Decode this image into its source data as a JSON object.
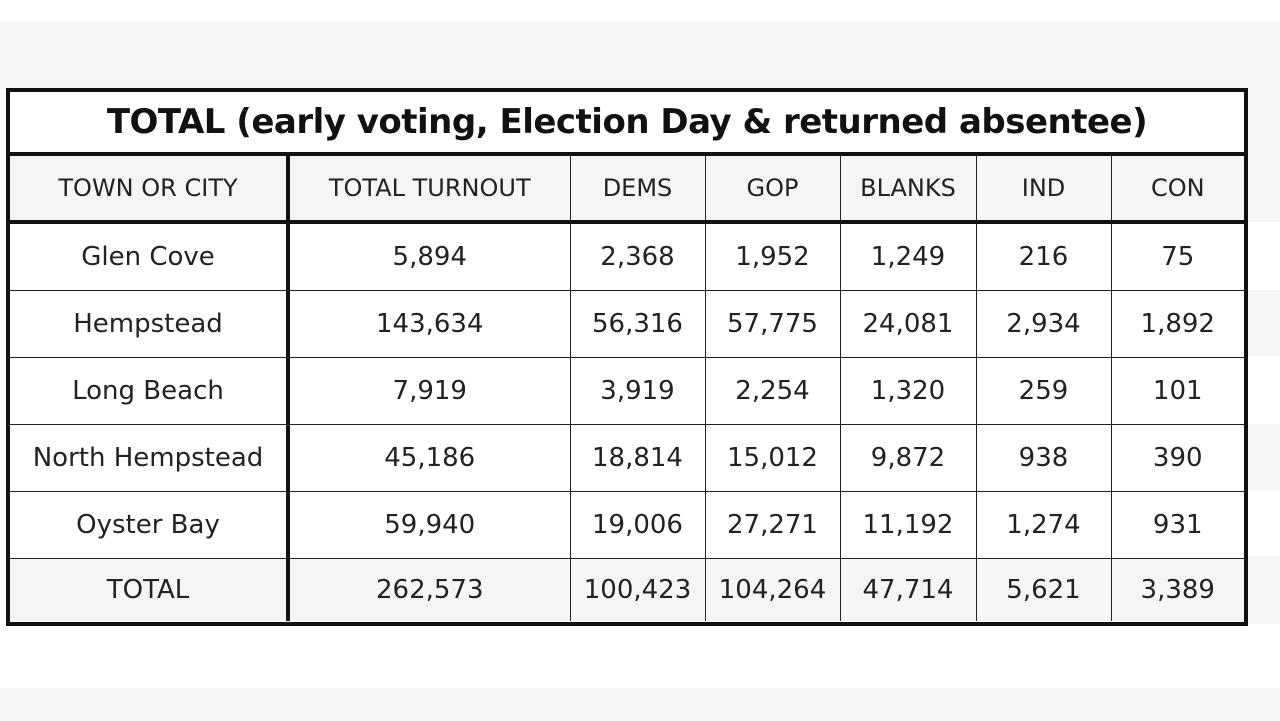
{
  "title": "TOTAL (early voting, Election Day & returned absentee)",
  "columns": [
    "TOWN OR CITY",
    "TOTAL TURNOUT",
    "DEMS",
    "GOP",
    "BLANKS",
    "IND",
    "CON"
  ],
  "rows": [
    [
      "Glen Cove",
      "5,894",
      "2,368",
      "1,952",
      "1,249",
      "216",
      "75"
    ],
    [
      "Hempstead",
      "143,634",
      "56,316",
      "57,775",
      "24,081",
      "2,934",
      "1,892"
    ],
    [
      "Long Beach",
      "7,919",
      "3,919",
      "2,254",
      "1,320",
      "259",
      "101"
    ],
    [
      "North Hempstead",
      "45,186",
      "18,814",
      "15,012",
      "9,872",
      "938",
      "390"
    ],
    [
      "Oyster Bay",
      "59,940",
      "19,006",
      "27,271",
      "11,192",
      "1,274",
      "931"
    ]
  ],
  "total": [
    "TOTAL",
    "262,573",
    "100,423",
    "104,264",
    "47,714",
    "5,621",
    "3,389"
  ]
}
